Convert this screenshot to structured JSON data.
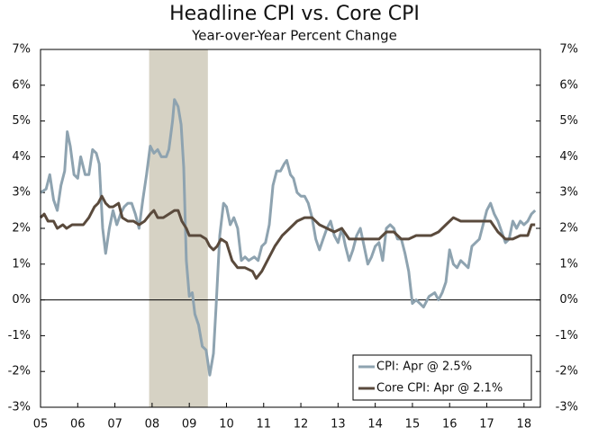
{
  "chart_data": {
    "type": "line",
    "title": "Headline CPI vs. Core CPI",
    "subtitle": "Year-over-Year Percent Change",
    "xlim": [
      2005,
      2018.44
    ],
    "xticks": [
      {
        "value": 2005,
        "label": "05"
      },
      {
        "value": 2006,
        "label": "06"
      },
      {
        "value": 2007,
        "label": "07"
      },
      {
        "value": 2008,
        "label": "08"
      },
      {
        "value": 2009,
        "label": "09"
      },
      {
        "value": 2010,
        "label": "10"
      },
      {
        "value": 2011,
        "label": "11"
      },
      {
        "value": 2012,
        "label": "12"
      },
      {
        "value": 2013,
        "label": "13"
      },
      {
        "value": 2014,
        "label": "14"
      },
      {
        "value": 2015,
        "label": "15"
      },
      {
        "value": 2016,
        "label": "16"
      },
      {
        "value": 2017,
        "label": "17"
      },
      {
        "value": 2018,
        "label": "18"
      }
    ],
    "ylim": [
      -3,
      7
    ],
    "yticks": [
      {
        "value": -3,
        "label": "-3%"
      },
      {
        "value": -2,
        "label": "-2%"
      },
      {
        "value": -1,
        "label": "-1%"
      },
      {
        "value": 0,
        "label": "0%"
      },
      {
        "value": 1,
        "label": "1%"
      },
      {
        "value": 2,
        "label": "2%"
      },
      {
        "value": 3,
        "label": "3%"
      },
      {
        "value": 4,
        "label": "4%"
      },
      {
        "value": 5,
        "label": "5%"
      },
      {
        "value": 6,
        "label": "6%"
      },
      {
        "value": 7,
        "label": "7%"
      }
    ],
    "y2lim": [
      -3,
      7
    ],
    "y2ticks": [
      {
        "value": -3,
        "label": "-3%"
      },
      {
        "value": -2,
        "label": "-2%"
      },
      {
        "value": -1,
        "label": "-1%"
      },
      {
        "value": 0,
        "label": "0%"
      },
      {
        "value": 1,
        "label": "1%"
      },
      {
        "value": 2,
        "label": "2%"
      },
      {
        "value": 3,
        "label": "3%"
      },
      {
        "value": 4,
        "label": "4%"
      },
      {
        "value": 5,
        "label": "5%"
      },
      {
        "value": 6,
        "label": "6%"
      },
      {
        "value": 7,
        "label": "7%"
      }
    ],
    "shade": {
      "xlim": [
        2007.92,
        2009.5
      ],
      "color": "#d6d2c4"
    },
    "legend": "lower right",
    "series": [
      {
        "name": "CPI: Apr @ 2.5%",
        "color": "#8ea3b0",
        "x": [
          2005.0,
          2005.15,
          2005.25,
          2005.35,
          2005.45,
          2005.55,
          2005.65,
          2005.72,
          2005.8,
          2005.9,
          2006.0,
          2006.08,
          2006.2,
          2006.3,
          2006.4,
          2006.5,
          2006.58,
          2006.67,
          2006.75,
          2006.85,
          2006.95,
          2007.05,
          2007.15,
          2007.25,
          2007.35,
          2007.45,
          2007.55,
          2007.65,
          2007.75,
          2007.85,
          2007.95,
          2008.05,
          2008.15,
          2008.25,
          2008.38,
          2008.45,
          2008.55,
          2008.6,
          2008.7,
          2008.78,
          2008.85,
          2008.92,
          2009.0,
          2009.08,
          2009.15,
          2009.25,
          2009.35,
          2009.45,
          2009.55,
          2009.65,
          2009.72,
          2009.82,
          2009.92,
          2010.0,
          2010.1,
          2010.2,
          2010.3,
          2010.4,
          2010.5,
          2010.6,
          2010.75,
          2010.85,
          2010.95,
          2011.05,
          2011.15,
          2011.25,
          2011.35,
          2011.45,
          2011.55,
          2011.62,
          2011.72,
          2011.8,
          2011.9,
          2012.0,
          2012.1,
          2012.2,
          2012.3,
          2012.4,
          2012.5,
          2012.6,
          2012.7,
          2012.8,
          2012.9,
          2013.0,
          2013.1,
          2013.2,
          2013.3,
          2013.4,
          2013.5,
          2013.6,
          2013.7,
          2013.8,
          2013.9,
          2014.0,
          2014.1,
          2014.2,
          2014.3,
          2014.4,
          2014.5,
          2014.6,
          2014.7,
          2014.8,
          2014.9,
          2015.0,
          2015.1,
          2015.2,
          2015.3,
          2015.45,
          2015.6,
          2015.7,
          2015.8,
          2015.9,
          2016.0,
          2016.1,
          2016.2,
          2016.3,
          2016.4,
          2016.5,
          2016.6,
          2016.7,
          2016.8,
          2016.9,
          2017.0,
          2017.1,
          2017.2,
          2017.3,
          2017.4,
          2017.5,
          2017.6,
          2017.7,
          2017.8,
          2017.9,
          2018.0,
          2018.1,
          2018.2,
          2018.3
        ],
        "values": [
          3.0,
          3.1,
          3.5,
          2.8,
          2.5,
          3.2,
          3.6,
          4.7,
          4.3,
          3.5,
          3.4,
          4.0,
          3.5,
          3.5,
          4.2,
          4.1,
          3.8,
          2.0,
          1.3,
          2.0,
          2.5,
          2.1,
          2.4,
          2.6,
          2.7,
          2.7,
          2.4,
          2.0,
          2.8,
          3.5,
          4.3,
          4.1,
          4.2,
          4.0,
          4.0,
          4.2,
          5.0,
          5.6,
          5.4,
          4.9,
          3.7,
          1.1,
          0.1,
          0.2,
          -0.4,
          -0.7,
          -1.3,
          -1.4,
          -2.1,
          -1.5,
          -0.2,
          1.8,
          2.7,
          2.6,
          2.1,
          2.3,
          2.0,
          1.1,
          1.2,
          1.1,
          1.2,
          1.1,
          1.5,
          1.6,
          2.1,
          3.2,
          3.6,
          3.6,
          3.8,
          3.9,
          3.5,
          3.4,
          3.0,
          2.9,
          2.9,
          2.7,
          2.3,
          1.7,
          1.4,
          1.7,
          2.0,
          2.2,
          1.8,
          1.6,
          2.0,
          1.5,
          1.1,
          1.4,
          1.8,
          2.0,
          1.5,
          1.0,
          1.2,
          1.5,
          1.6,
          1.1,
          2.0,
          2.1,
          2.0,
          1.7,
          1.7,
          1.3,
          0.8,
          -0.1,
          0.0,
          -0.1,
          -0.2,
          0.1,
          0.2,
          0.0,
          0.2,
          0.5,
          1.4,
          1.0,
          0.9,
          1.1,
          1.0,
          0.9,
          1.5,
          1.6,
          1.7,
          2.1,
          2.5,
          2.7,
          2.4,
          2.2,
          1.9,
          1.6,
          1.7,
          2.2,
          2.0,
          2.2,
          2.1,
          2.2,
          2.4,
          2.5
        ]
      },
      {
        "name": "Core CPI: Apr @ 2.1%",
        "color": "#5a4a3c",
        "x": [
          2005.0,
          2005.1,
          2005.2,
          2005.35,
          2005.45,
          2005.6,
          2005.7,
          2005.85,
          2006.0,
          2006.15,
          2006.3,
          2006.45,
          2006.55,
          2006.65,
          2006.75,
          2006.85,
          2006.95,
          2007.1,
          2007.2,
          2007.35,
          2007.5,
          2007.65,
          2007.8,
          2007.95,
          2008.05,
          2008.15,
          2008.3,
          2008.45,
          2008.6,
          2008.7,
          2008.8,
          2008.92,
          2009.0,
          2009.15,
          2009.3,
          2009.45,
          2009.55,
          2009.65,
          2009.75,
          2009.85,
          2010.0,
          2010.15,
          2010.3,
          2010.5,
          2010.7,
          2010.8,
          2010.95,
          2011.1,
          2011.3,
          2011.5,
          2011.7,
          2011.9,
          2012.1,
          2012.3,
          2012.5,
          2012.7,
          2012.9,
          2013.1,
          2013.3,
          2013.5,
          2013.7,
          2013.9,
          2014.1,
          2014.3,
          2014.5,
          2014.7,
          2014.9,
          2015.1,
          2015.3,
          2015.5,
          2015.7,
          2015.9,
          2016.1,
          2016.3,
          2016.5,
          2016.7,
          2016.9,
          2017.1,
          2017.3,
          2017.5,
          2017.7,
          2017.9,
          2018.1,
          2018.2,
          2018.3
        ],
        "values": [
          2.3,
          2.4,
          2.2,
          2.2,
          2.0,
          2.1,
          2.0,
          2.1,
          2.1,
          2.1,
          2.3,
          2.6,
          2.7,
          2.9,
          2.7,
          2.6,
          2.6,
          2.7,
          2.3,
          2.2,
          2.2,
          2.1,
          2.2,
          2.4,
          2.5,
          2.3,
          2.3,
          2.4,
          2.5,
          2.5,
          2.2,
          2.0,
          1.8,
          1.8,
          1.8,
          1.7,
          1.5,
          1.4,
          1.5,
          1.7,
          1.6,
          1.1,
          0.9,
          0.9,
          0.8,
          0.6,
          0.8,
          1.1,
          1.5,
          1.8,
          2.0,
          2.2,
          2.3,
          2.3,
          2.1,
          2.0,
          1.9,
          2.0,
          1.7,
          1.7,
          1.7,
          1.7,
          1.7,
          1.9,
          1.9,
          1.7,
          1.7,
          1.8,
          1.8,
          1.8,
          1.9,
          2.1,
          2.3,
          2.2,
          2.2,
          2.2,
          2.2,
          2.2,
          1.9,
          1.7,
          1.7,
          1.8,
          1.8,
          2.1,
          2.1
        ]
      }
    ]
  }
}
